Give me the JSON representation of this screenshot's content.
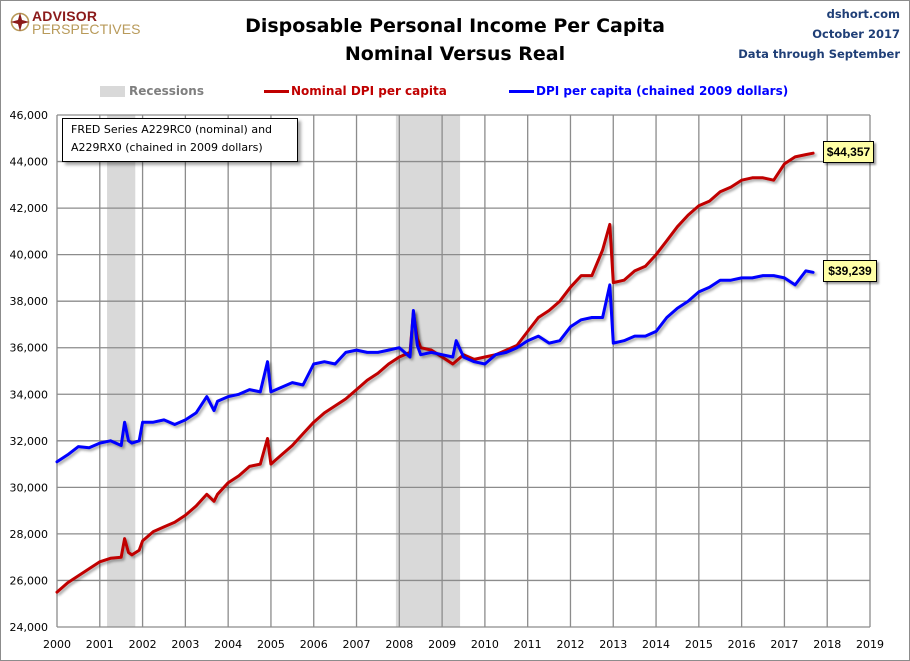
{
  "header": {
    "logo_top": "ADVISOR",
    "logo_bottom": "PERSPECTIVES",
    "title_line1": "Disposable Personal Income Per Capita",
    "title_line2": "Nominal Versus Real",
    "source": "dshort.com",
    "date": "October 2017",
    "data_through": "Data through September"
  },
  "legend": {
    "recessions": "Recessions",
    "nominal": "Nominal DPI per capita",
    "real": "DPI per capita (chained 2009 dollars)"
  },
  "note": {
    "line1": "FRED Series A229RC0 (nominal) and",
    "line2": "A229RX0 (chained in 2009 dollars)"
  },
  "labels": {
    "nominal_last": "$44,357",
    "real_last": "$39,239"
  },
  "colors": {
    "nominal": "#c00000",
    "real": "#0000ff",
    "recession": "#d9d9d9",
    "grid": "#8c8c8c",
    "label_bg": "#ffffa6",
    "meta_text": "#1f3f77",
    "recession_text": "#7f7f7f"
  },
  "chart_data": {
    "type": "line",
    "title": "Disposable Personal Income Per Capita — Nominal Versus Real",
    "xlabel": "",
    "ylabel": "",
    "xlim": [
      2000,
      2019
    ],
    "ylim": [
      24000,
      46000
    ],
    "x_ticks": [
      2000,
      2001,
      2002,
      2003,
      2004,
      2005,
      2006,
      2007,
      2008,
      2009,
      2010,
      2011,
      2012,
      2013,
      2014,
      2015,
      2016,
      2017,
      2018,
      2019
    ],
    "y_ticks": [
      24000,
      26000,
      28000,
      30000,
      32000,
      34000,
      36000,
      38000,
      40000,
      42000,
      44000,
      46000
    ],
    "y_tick_labels": [
      "24,000",
      "26,000",
      "28,000",
      "30,000",
      "32,000",
      "34,000",
      "36,000",
      "38,000",
      "40,000",
      "42,000",
      "44,000",
      "46,000"
    ],
    "grid": true,
    "legend_position": "top",
    "recessions": [
      [
        2001.17,
        2001.83
      ],
      [
        2007.92,
        2009.42
      ]
    ],
    "series": [
      {
        "name": "Nominal DPI per capita",
        "color": "#c00000",
        "x": [
          2000.0,
          2000.25,
          2000.5,
          2000.75,
          2001.0,
          2001.25,
          2001.5,
          2001.58,
          2001.67,
          2001.75,
          2001.92,
          2002.0,
          2002.25,
          2002.5,
          2002.75,
          2003.0,
          2003.25,
          2003.5,
          2003.67,
          2003.75,
          2004.0,
          2004.25,
          2004.5,
          2004.75,
          2004.92,
          2005.0,
          2005.25,
          2005.5,
          2005.75,
          2006.0,
          2006.25,
          2006.5,
          2006.75,
          2007.0,
          2007.25,
          2007.5,
          2007.75,
          2008.0,
          2008.25,
          2008.33,
          2008.42,
          2008.5,
          2008.75,
          2009.0,
          2009.25,
          2009.5,
          2009.75,
          2010.0,
          2010.25,
          2010.5,
          2010.75,
          2011.0,
          2011.25,
          2011.5,
          2011.75,
          2012.0,
          2012.25,
          2012.5,
          2012.75,
          2012.92,
          2013.0,
          2013.25,
          2013.5,
          2013.75,
          2014.0,
          2014.25,
          2014.5,
          2014.75,
          2015.0,
          2015.25,
          2015.5,
          2015.75,
          2016.0,
          2016.25,
          2016.5,
          2016.75,
          2017.0,
          2017.25,
          2017.5,
          2017.67
        ],
        "values": [
          25500,
          25900,
          26200,
          26500,
          26800,
          26950,
          27000,
          27800,
          27200,
          27100,
          27300,
          27700,
          28100,
          28300,
          28500,
          28800,
          29200,
          29700,
          29400,
          29700,
          30200,
          30500,
          30900,
          31000,
          32100,
          31000,
          31400,
          31800,
          32300,
          32800,
          33200,
          33500,
          33800,
          34200,
          34600,
          34900,
          35300,
          35600,
          35800,
          37500,
          36400,
          36000,
          35900,
          35600,
          35300,
          35700,
          35500,
          35600,
          35700,
          35900,
          36100,
          36700,
          37300,
          37600,
          38000,
          38600,
          39100,
          39100,
          40200,
          41300,
          38800,
          38900,
          39300,
          39500,
          40000,
          40600,
          41200,
          41700,
          42100,
          42300,
          42700,
          42900,
          43200,
          43300,
          43300,
          43200,
          43900,
          44200,
          44300,
          44357
        ]
      },
      {
        "name": "DPI per capita (chained 2009 dollars)",
        "color": "#0000ff",
        "x": [
          2000.0,
          2000.25,
          2000.5,
          2000.75,
          2001.0,
          2001.25,
          2001.5,
          2001.58,
          2001.67,
          2001.75,
          2001.92,
          2002.0,
          2002.25,
          2002.5,
          2002.75,
          2003.0,
          2003.25,
          2003.5,
          2003.67,
          2003.75,
          2004.0,
          2004.25,
          2004.5,
          2004.75,
          2004.92,
          2005.0,
          2005.25,
          2005.5,
          2005.75,
          2006.0,
          2006.25,
          2006.5,
          2006.75,
          2007.0,
          2007.25,
          2007.5,
          2007.75,
          2008.0,
          2008.25,
          2008.33,
          2008.42,
          2008.5,
          2008.75,
          2009.0,
          2009.25,
          2009.33,
          2009.5,
          2009.75,
          2010.0,
          2010.25,
          2010.5,
          2010.75,
          2011.0,
          2011.25,
          2011.5,
          2011.75,
          2012.0,
          2012.25,
          2012.5,
          2012.75,
          2012.92,
          2013.0,
          2013.25,
          2013.5,
          2013.75,
          2014.0,
          2014.25,
          2014.5,
          2014.75,
          2015.0,
          2015.25,
          2015.5,
          2015.75,
          2016.0,
          2016.25,
          2016.5,
          2016.75,
          2017.0,
          2017.25,
          2017.5,
          2017.67
        ],
        "values": [
          31100,
          31400,
          31750,
          31700,
          31900,
          32000,
          31800,
          32800,
          32000,
          31900,
          32000,
          32800,
          32800,
          32900,
          32700,
          32900,
          33200,
          33900,
          33300,
          33700,
          33900,
          34000,
          34200,
          34100,
          35400,
          34100,
          34300,
          34500,
          34400,
          35300,
          35400,
          35300,
          35800,
          35900,
          35800,
          35800,
          35900,
          36000,
          35600,
          37600,
          36100,
          35700,
          35800,
          35700,
          35600,
          36300,
          35600,
          35400,
          35300,
          35700,
          35800,
          36000,
          36300,
          36500,
          36200,
          36300,
          36900,
          37200,
          37300,
          37300,
          38700,
          36200,
          36300,
          36500,
          36500,
          36700,
          37300,
          37700,
          38000,
          38400,
          38600,
          38900,
          38900,
          39000,
          39000,
          39100,
          39100,
          39000,
          38700,
          39300,
          39239
        ]
      }
    ],
    "annotations": [
      {
        "text": "FRED Series A229RC0 (nominal) and A229RX0 (chained in 2009 dollars)"
      },
      {
        "text": "$44,357",
        "series": "Nominal DPI per capita"
      },
      {
        "text": "$39,239",
        "series": "DPI per capita (chained 2009 dollars)"
      }
    ]
  }
}
